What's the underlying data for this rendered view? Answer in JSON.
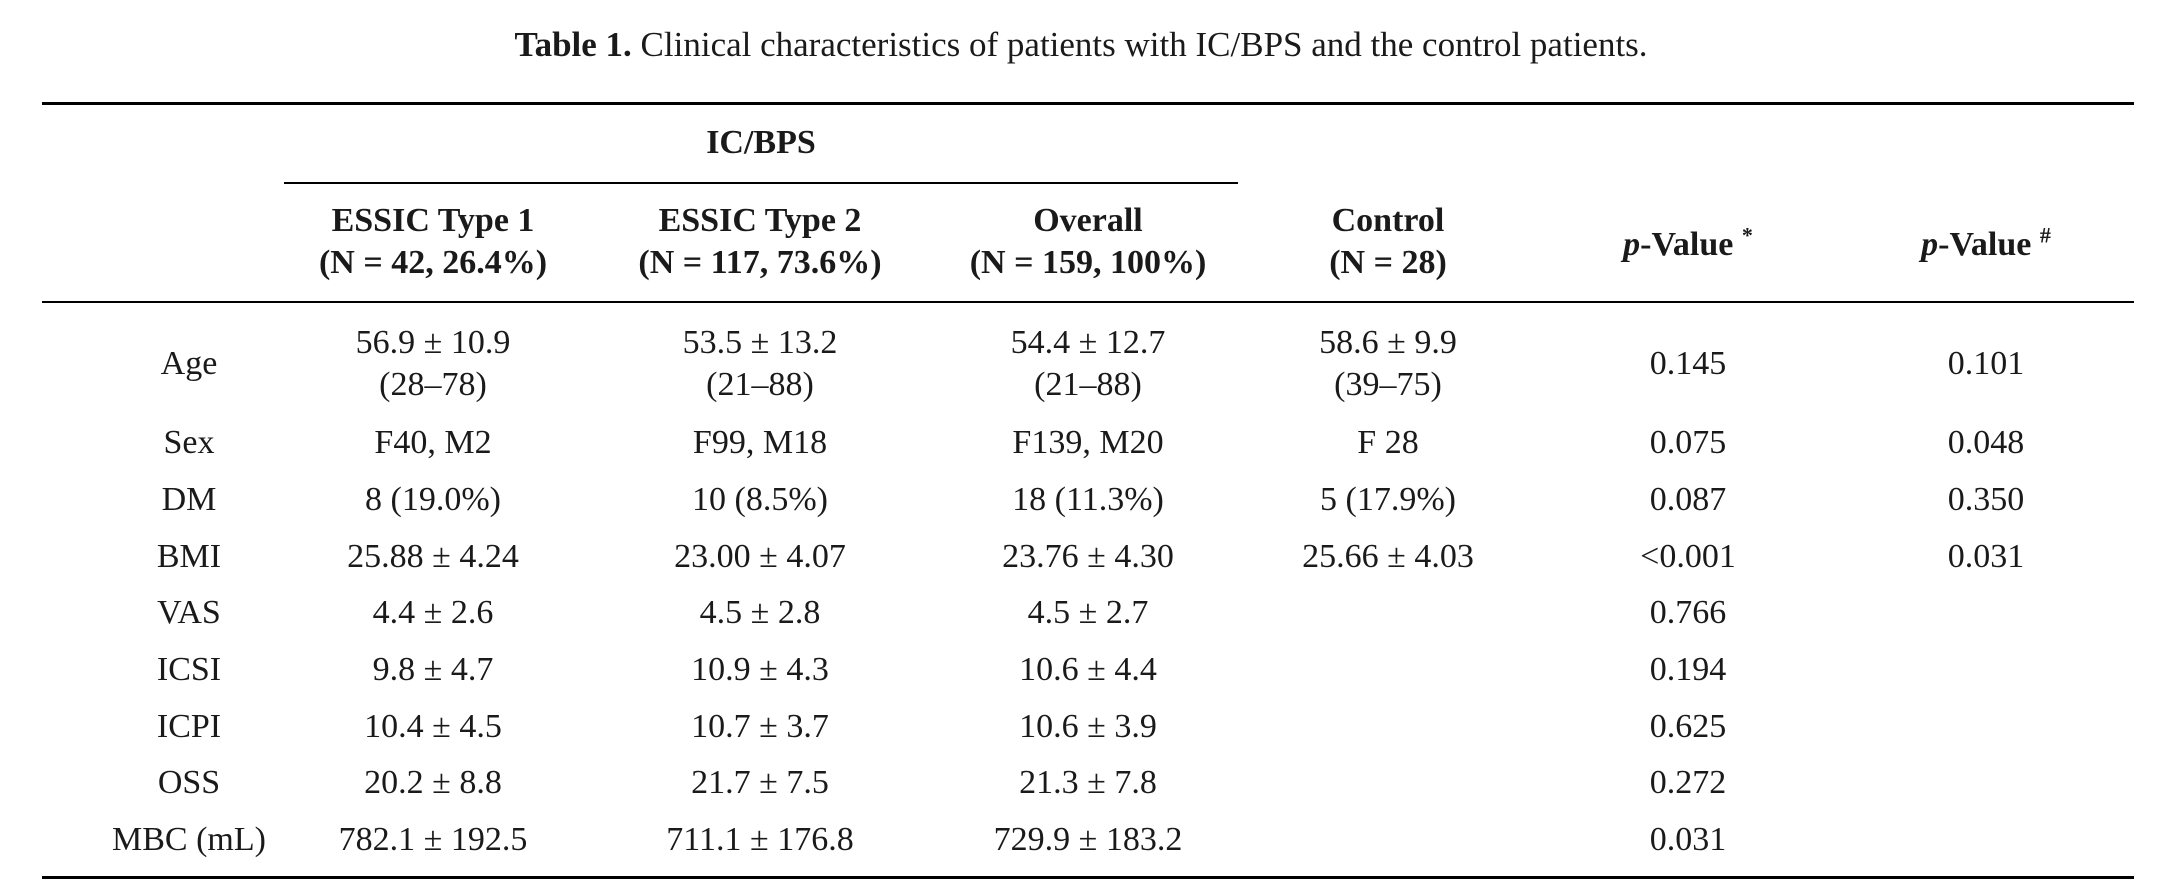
{
  "caption": {
    "label": "Table 1.",
    "text": " Clinical characteristics of patients with IC/BPS and the control patients."
  },
  "header": {
    "group_label": "IC/BPS",
    "columns": [
      {
        "line1": "ESSIC Type 1",
        "line2": "(N = 42, 26.4%)"
      },
      {
        "line1": "ESSIC Type 2",
        "line2": "(N = 117, 73.6%)"
      },
      {
        "line1": "Overall",
        "line2": "(N = 159, 100%)"
      },
      {
        "line1": "Control",
        "line2": "(N = 28)"
      }
    ],
    "pvalue1": {
      "p": "p",
      "rest": "-Value ",
      "sup": "*"
    },
    "pvalue2": {
      "p": "p",
      "rest": "-Value ",
      "sup": "#"
    }
  },
  "rows": [
    {
      "label": "Age",
      "cells": [
        [
          "56.9 ± 10.9",
          "(28–78)"
        ],
        [
          "53.5 ± 13.2",
          "(21–88)"
        ],
        [
          "54.4 ± 12.7",
          "(21–88)"
        ],
        [
          "58.6 ± 9.9",
          "(39–75)"
        ]
      ],
      "p1": "0.145",
      "p2": "0.101"
    },
    {
      "label": "Sex",
      "cells": [
        [
          "F40, M2"
        ],
        [
          "F99, M18"
        ],
        [
          "F139, M20"
        ],
        [
          "F 28"
        ]
      ],
      "p1": "0.075",
      "p2": "0.048"
    },
    {
      "label": "DM",
      "cells": [
        [
          "8 (19.0%)"
        ],
        [
          "10 (8.5%)"
        ],
        [
          "18 (11.3%)"
        ],
        [
          "5 (17.9%)"
        ]
      ],
      "p1": "0.087",
      "p2": "0.350"
    },
    {
      "label": "BMI",
      "cells": [
        [
          "25.88 ± 4.24"
        ],
        [
          "23.00 ± 4.07"
        ],
        [
          "23.76 ± 4.30"
        ],
        [
          "25.66 ± 4.03"
        ]
      ],
      "p1": "<0.001",
      "p2": "0.031"
    },
    {
      "label": "VAS",
      "cells": [
        [
          "4.4 ± 2.6"
        ],
        [
          "4.5 ± 2.8"
        ],
        [
          "4.5 ± 2.7"
        ],
        [
          ""
        ]
      ],
      "p1": "0.766",
      "p2": ""
    },
    {
      "label": "ICSI",
      "cells": [
        [
          "9.8 ± 4.7"
        ],
        [
          "10.9 ± 4.3"
        ],
        [
          "10.6 ± 4.4"
        ],
        [
          ""
        ]
      ],
      "p1": "0.194",
      "p2": ""
    },
    {
      "label": "ICPI",
      "cells": [
        [
          "10.4 ± 4.5"
        ],
        [
          "10.7 ± 3.7"
        ],
        [
          "10.6 ± 3.9"
        ],
        [
          ""
        ]
      ],
      "p1": "0.625",
      "p2": ""
    },
    {
      "label": "OSS",
      "cells": [
        [
          "20.2 ± 8.8"
        ],
        [
          "21.7 ± 7.5"
        ],
        [
          "21.3 ± 7.8"
        ],
        [
          ""
        ]
      ],
      "p1": "0.272",
      "p2": ""
    },
    {
      "label": "MBC (mL)",
      "cells": [
        [
          "782.1 ± 192.5"
        ],
        [
          "711.1 ± 176.8"
        ],
        [
          "729.9 ± 183.2"
        ],
        [
          ""
        ]
      ],
      "p1": "0.031",
      "p2": ""
    }
  ]
}
